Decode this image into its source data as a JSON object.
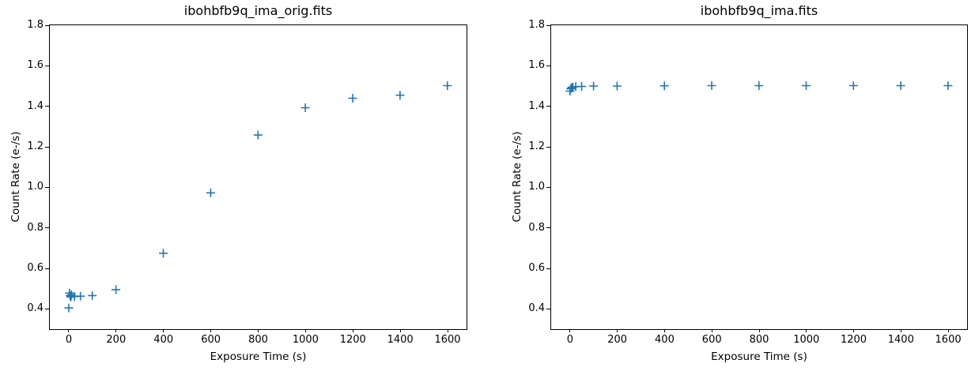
{
  "figure": {
    "background": "#ffffff",
    "marker_color": "#1f77b4"
  },
  "chart_data": [
    {
      "type": "scatter",
      "title": "ibohbfb9q_ima_orig.fits",
      "xlabel": "Exposure Time (s)",
      "ylabel": "Count Rate (e-/s)",
      "xlim": [
        -80,
        1680
      ],
      "ylim": [
        0.3,
        1.8
      ],
      "xticks": [
        0,
        200,
        400,
        600,
        800,
        1000,
        1200,
        1400,
        1600
      ],
      "xtick_labels": [
        "0",
        "200",
        "400",
        "600",
        "800",
        "1000",
        "1200",
        "1400",
        "1600"
      ],
      "yticks": [
        0.4,
        0.6,
        0.8,
        1.0,
        1.2,
        1.4,
        1.6,
        1.8
      ],
      "ytick_labels": [
        "0.4",
        "0.6",
        "0.8",
        "1.0",
        "1.2",
        "1.4",
        "1.6",
        "1.8"
      ],
      "grid": false,
      "legend": "none",
      "marker": "plus",
      "marker_color": "#1f77b4",
      "x": [
        0,
        2.9,
        5.9,
        8.8,
        11.7,
        24.2,
        49.2,
        99.2,
        199.2,
        399.2,
        599.2,
        799.2,
        999.2,
        1199.2,
        1399.2,
        1599.2
      ],
      "y": [
        0.405,
        0.478,
        0.465,
        0.459,
        0.47,
        0.461,
        0.463,
        0.466,
        0.495,
        0.675,
        0.973,
        1.258,
        1.393,
        1.44,
        1.455,
        1.502
      ]
    },
    {
      "type": "scatter",
      "title": "ibohbfb9q_ima.fits",
      "xlabel": "Exposure Time (s)",
      "ylabel": "Count Rate (e-/s)",
      "xlim": [
        -80,
        1680
      ],
      "ylim": [
        0.3,
        1.8
      ],
      "xticks": [
        0,
        200,
        400,
        600,
        800,
        1000,
        1200,
        1400,
        1600
      ],
      "xtick_labels": [
        "0",
        "200",
        "400",
        "600",
        "800",
        "1000",
        "1200",
        "1400",
        "1600"
      ],
      "yticks": [
        0.4,
        0.6,
        0.8,
        1.0,
        1.2,
        1.4,
        1.6,
        1.8
      ],
      "ytick_labels": [
        "0.4",
        "0.6",
        "0.8",
        "1.0",
        "1.2",
        "1.4",
        "1.6",
        "1.8"
      ],
      "grid": false,
      "legend": "none",
      "marker": "plus",
      "marker_color": "#1f77b4",
      "x": [
        0,
        2.9,
        5.9,
        8.8,
        11.7,
        24.2,
        49.2,
        99.2,
        199.2,
        399.2,
        599.2,
        799.2,
        999.2,
        1199.2,
        1399.2,
        1599.2
      ],
      "y": [
        1.475,
        1.487,
        1.49,
        1.493,
        1.495,
        1.497,
        1.498,
        1.5,
        1.5,
        1.501,
        1.502,
        1.502,
        1.502,
        1.502,
        1.502,
        1.502
      ]
    }
  ]
}
